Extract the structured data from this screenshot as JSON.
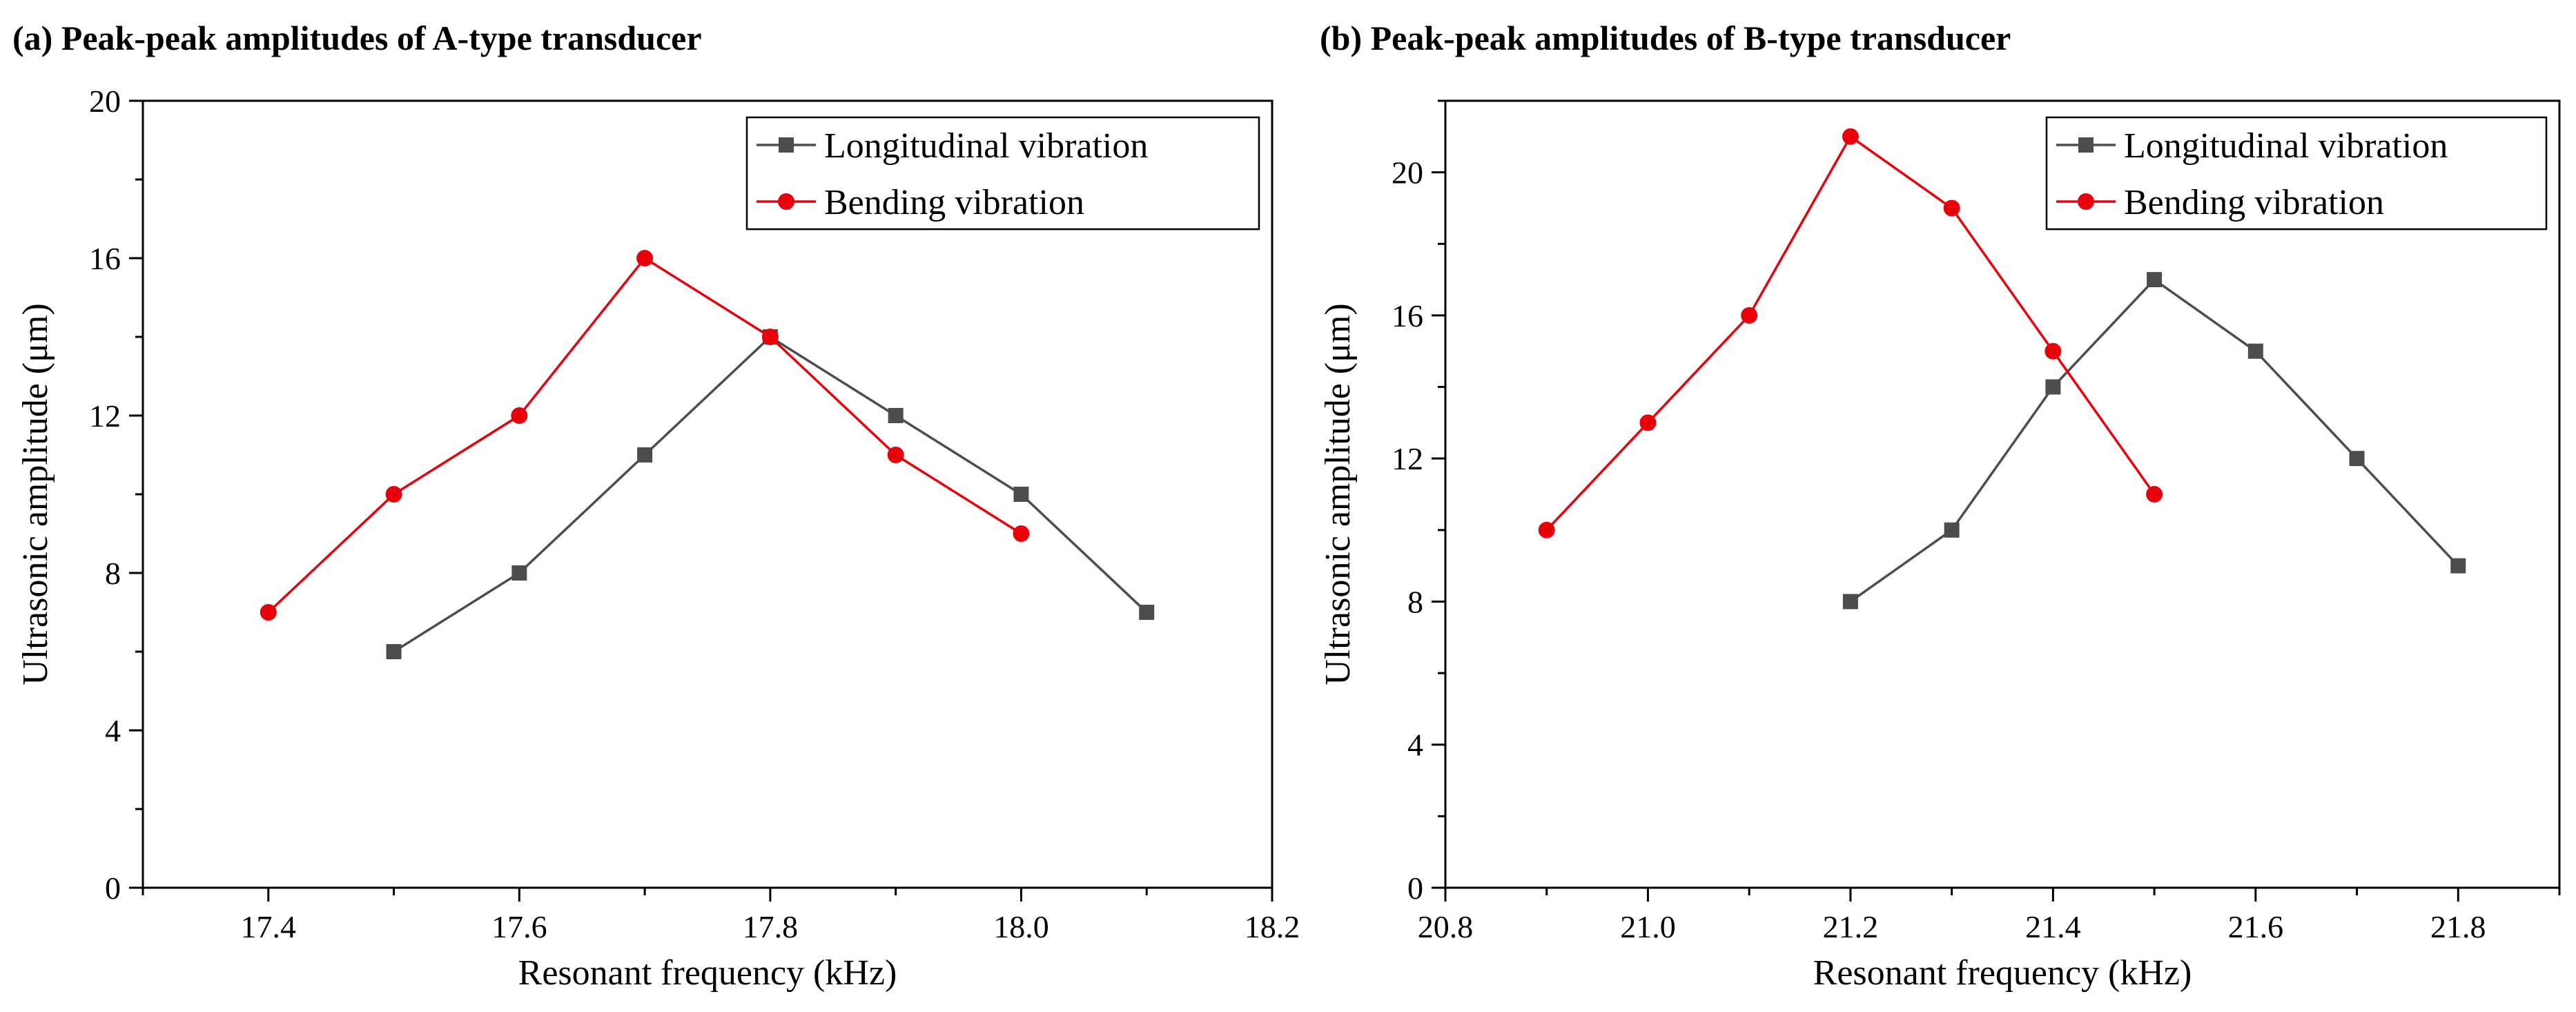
{
  "chart_data": [
    {
      "type": "line",
      "title": "(a) Peak-peak amplitudes of A-type transducer",
      "xlabel": "Resonant frequency (kHz)",
      "ylabel": "Ultrasonic amplitude (μm)",
      "xlim": [
        17.3,
        18.2
      ],
      "ylim": [
        0,
        20
      ],
      "xticks": [
        "17.4",
        "17.6",
        "17.8",
        "18.0",
        "18.2"
      ],
      "xtick_values": [
        17.4,
        17.6,
        17.8,
        18.0,
        18.2
      ],
      "yticks": [
        "0",
        "4",
        "8",
        "12",
        "16",
        "20"
      ],
      "ytick_values": [
        0,
        4,
        8,
        12,
        16,
        20
      ],
      "legend_position": "top-right",
      "series": [
        {
          "name": "Longitudinal vibration",
          "color": "#4d4d4d",
          "marker": "square",
          "x": [
            17.5,
            17.6,
            17.7,
            17.8,
            17.9,
            18.0,
            18.1
          ],
          "y": [
            6,
            8,
            11,
            14,
            12,
            10,
            7
          ]
        },
        {
          "name": "Bending vibration",
          "color": "#e8000b",
          "marker": "circle",
          "x": [
            17.4,
            17.5,
            17.6,
            17.7,
            17.8,
            17.9,
            18.0
          ],
          "y": [
            7,
            10,
            12,
            16,
            14,
            11,
            9
          ]
        }
      ]
    },
    {
      "type": "line",
      "title": "(b) Peak-peak amplitudes of  B-type transducer",
      "xlabel": "Resonant frequency (kHz)",
      "ylabel": "Ultrasonic amplitude (μm)",
      "xlim": [
        20.8,
        21.9
      ],
      "ylim": [
        0,
        22
      ],
      "xticks": [
        "20.8",
        "21.0",
        "21.2",
        "21.4",
        "21.6",
        "21.8"
      ],
      "xtick_values": [
        20.8,
        21.0,
        21.2,
        21.4,
        21.6,
        21.8
      ],
      "yticks": [
        "0",
        "4",
        "8",
        "12",
        "16",
        "20"
      ],
      "ytick_values": [
        0,
        4,
        8,
        12,
        16,
        20
      ],
      "legend_position": "top-right",
      "series": [
        {
          "name": "Longitudinal vibration",
          "color": "#4d4d4d",
          "marker": "square",
          "x": [
            21.2,
            21.3,
            21.4,
            21.5,
            21.6,
            21.7,
            21.8
          ],
          "y": [
            8,
            10,
            14,
            17,
            15,
            12,
            9
          ]
        },
        {
          "name": "Bending vibration",
          "color": "#e8000b",
          "marker": "circle",
          "x": [
            20.9,
            21.0,
            21.1,
            21.2,
            21.3,
            21.4,
            21.5
          ],
          "y": [
            10,
            13,
            16,
            21,
            19,
            15,
            11
          ]
        }
      ]
    }
  ]
}
